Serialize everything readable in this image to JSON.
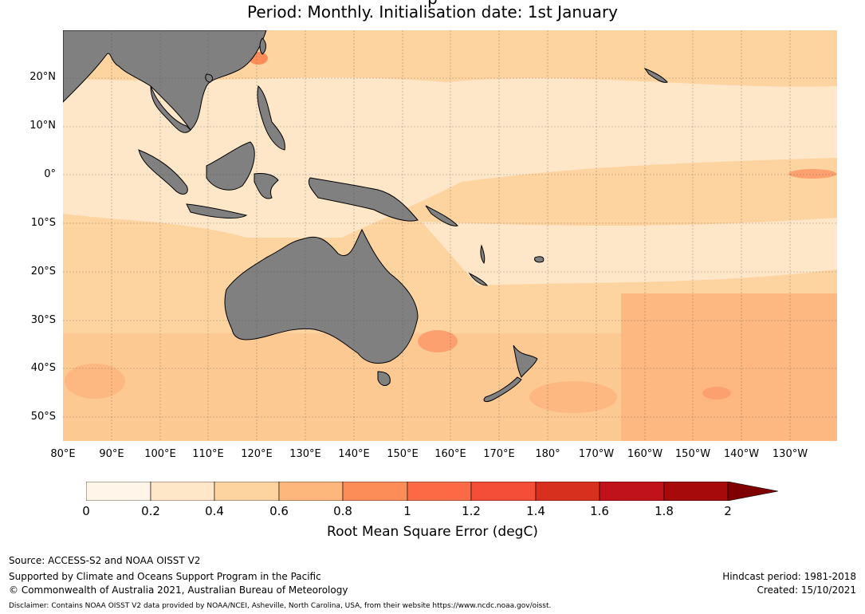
{
  "titles": [
    "p",
    "Period: Monthly. Initialisation date: 1st January"
  ],
  "map": {
    "latitude_labels": [
      "20°N",
      "10°N",
      "0°",
      "10°S",
      "20°S",
      "30°S",
      "40°S",
      "50°S"
    ],
    "longitude_labels": [
      "80°E",
      "90°E",
      "100°E",
      "110°E",
      "120°E",
      "130°E",
      "140°E",
      "150°E",
      "160°E",
      "170°E",
      "180°",
      "170°W",
      "160°W",
      "150°W",
      "140°W",
      "130°W"
    ],
    "land_color": "#808080",
    "coastline_color": "#000000"
  },
  "colorbar": {
    "ticks": [
      "0",
      "0.2",
      "0.4",
      "0.6",
      "0.8",
      "1",
      "1.2",
      "1.4",
      "1.6",
      "1.8",
      "2"
    ],
    "colors": [
      "#fff5e8",
      "#fee6c8",
      "#fdd3a0",
      "#fdb67b",
      "#fc8c58",
      "#fb6a45",
      "#f44d38",
      "#d7301f",
      "#c0121a",
      "#a60a0a"
    ],
    "extend_color": "#7f0000",
    "label": "Root Mean Square Error (degC)"
  },
  "footer": {
    "source": "Source: ACCESS-S2 and NOAA OISST V2",
    "support": "Supported by Climate and Oceans Support Program in the Pacific",
    "copyright": "© Commonwealth of Australia 2021, Australian Bureau of Meteorology",
    "disclaimer": "Disclaimer: Contains NOAA OISST V2 data provided by NOAA/NCEI, Asheville, North Carolina, USA, from their website https://www.ncdc.noaa.gov/oisst.",
    "hindcast": "Hindcast period: 1981-2018",
    "created": "Created: 15/10/2021"
  }
}
